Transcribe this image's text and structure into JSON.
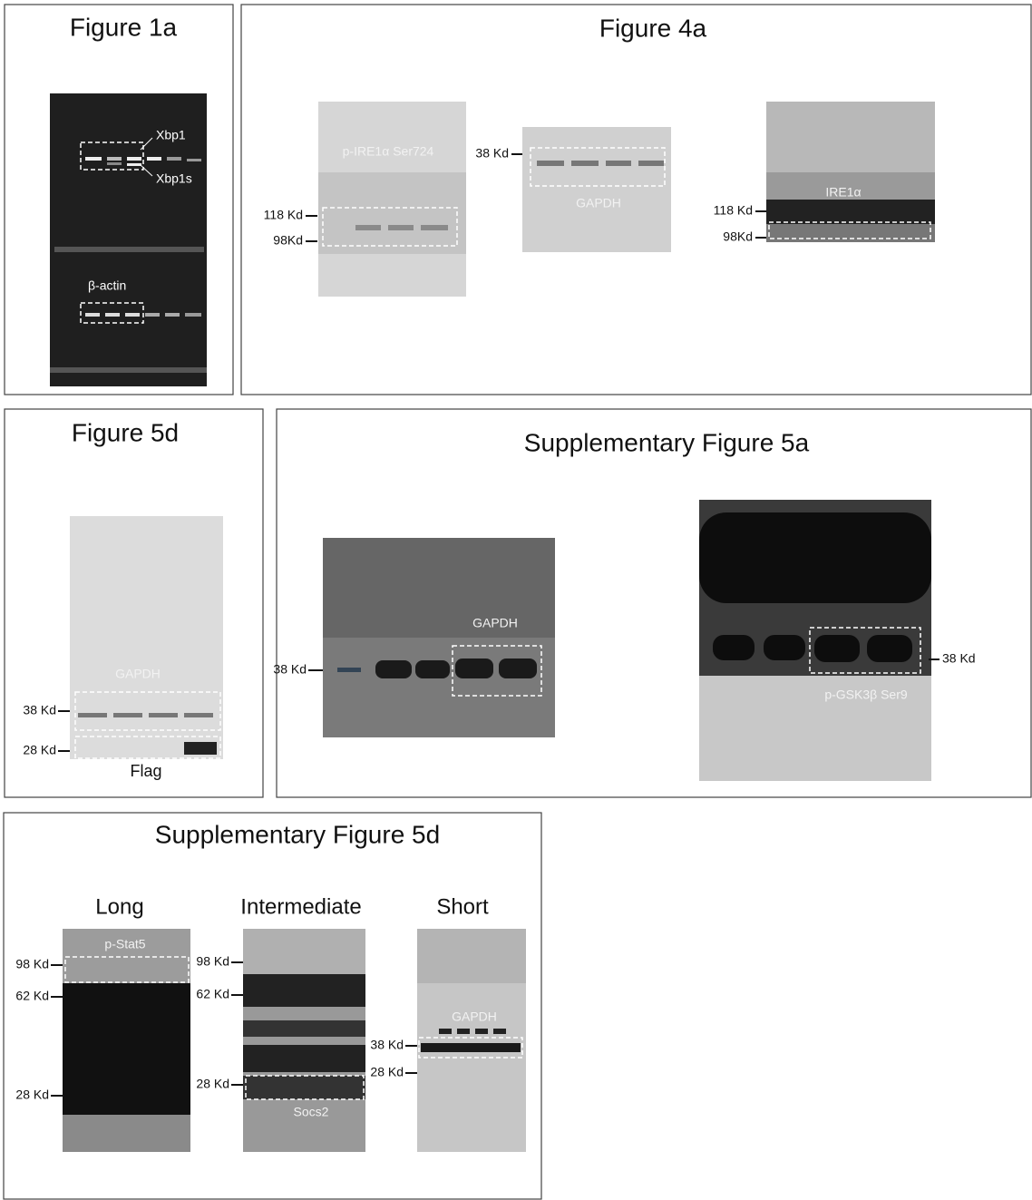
{
  "panels": [
    {
      "title": "Figure 1a",
      "labels": [
        "Xbp1",
        "Xbp1s",
        "β-actin"
      ]
    },
    {
      "title": "Figure 4a",
      "blots": [
        {
          "label": "p-IRE1α Ser724",
          "markers": [
            "118 Kd",
            "98Kd"
          ]
        },
        {
          "label": "GAPDH",
          "markers": [
            "38 Kd"
          ]
        },
        {
          "label": "IRE1α",
          "markers": [
            "118 Kd",
            "98Kd"
          ]
        }
      ]
    },
    {
      "title": "Figure 5d",
      "blots": [
        {
          "label": "GAPDH",
          "markers": [
            "38 Kd",
            "28 Kd"
          ],
          "bottom_label": "Flag"
        }
      ]
    },
    {
      "title": "Supplementary  Figure 5a",
      "blots": [
        {
          "label": "GAPDH",
          "markers": [
            "38 Kd"
          ]
        },
        {
          "label": "p-GSK3β Ser9",
          "markers": [
            "38 Kd"
          ]
        }
      ]
    },
    {
      "title": "Supplementary  Figure 5d",
      "blots": [
        {
          "heading": "Long",
          "label": "p-Stat5",
          "markers": [
            "98 Kd",
            "62 Kd",
            "28 Kd"
          ]
        },
        {
          "heading": "Intermediate",
          "label": "Socs2",
          "markers": [
            "98 Kd",
            "62 Kd",
            "28 Kd"
          ]
        },
        {
          "heading": "Short",
          "label": "GAPDH",
          "markers": [
            "38 Kd",
            "28 Kd"
          ]
        }
      ]
    }
  ]
}
